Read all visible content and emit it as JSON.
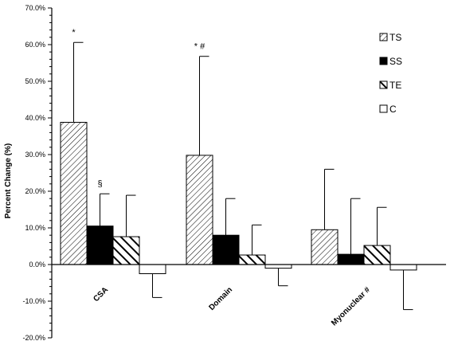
{
  "chart_data": {
    "type": "bar",
    "ylabel": "Percent Change (%)",
    "ylim": [
      -20,
      70
    ],
    "y_tick_step": 10,
    "y_tick_labels": [
      "-20.0%",
      "-10.0%",
      "0.0%",
      "10.0%",
      "20.0%",
      "30.0%",
      "40.0%",
      "50.0%",
      "60.0%",
      "70.0%"
    ],
    "categories": [
      "CSA",
      "Domain",
      "Myonuclear #"
    ],
    "legend_position": "top-right",
    "series": [
      {
        "name": "TS",
        "pattern": "diag-light",
        "values": [
          38.8,
          29.8,
          9.5
        ],
        "errors": [
          21.8,
          27.0,
          16.5
        ]
      },
      {
        "name": "SS",
        "pattern": "solid",
        "values": [
          10.5,
          8.0,
          2.8
        ],
        "errors": [
          8.8,
          10.0,
          15.2
        ]
      },
      {
        "name": "TE",
        "pattern": "diag-bold",
        "values": [
          7.6,
          2.6,
          5.2
        ],
        "errors": [
          11.3,
          8.2,
          10.4
        ]
      },
      {
        "name": "C",
        "pattern": "empty",
        "values": [
          -2.5,
          -1.0,
          -1.5
        ],
        "errors": [
          6.5,
          4.8,
          10.8
        ]
      }
    ],
    "annotations": [
      {
        "text": "*",
        "category": 0,
        "series": 0
      },
      {
        "text": "§",
        "category": 0,
        "series": 1
      },
      {
        "text": "* #",
        "category": 1,
        "series": 0
      }
    ],
    "grid": false
  },
  "colors": {
    "ink": "#000000",
    "background": "#ffffff"
  }
}
